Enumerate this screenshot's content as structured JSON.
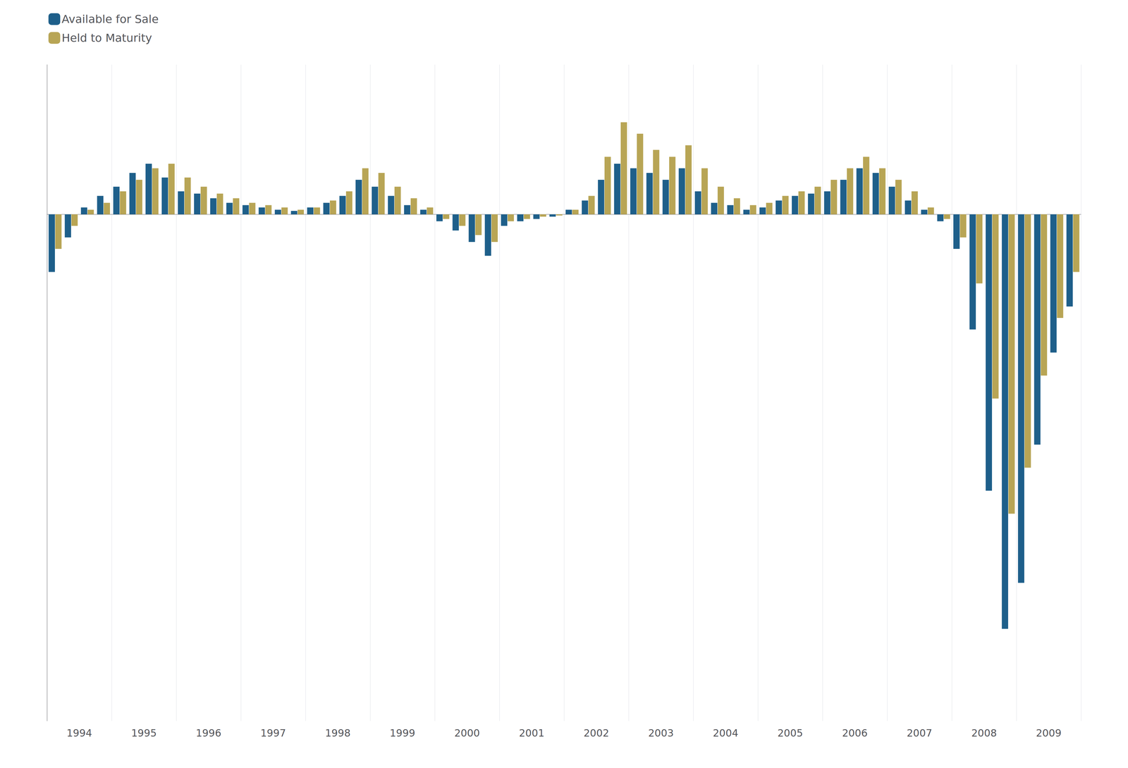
{
  "chart_data": {
    "type": "bar",
    "categories": [
      "1994",
      null,
      null,
      null,
      "1995",
      null,
      null,
      null,
      "1996",
      null,
      null,
      null,
      "1997",
      null,
      null,
      null,
      "1998",
      null,
      null,
      null,
      "1999",
      null,
      null,
      null,
      "2000",
      null,
      null,
      null,
      "2001",
      null,
      null,
      null,
      "2002",
      null,
      null,
      null,
      "2003",
      null,
      null,
      null,
      "2004",
      null,
      null,
      null,
      "2005",
      null,
      null,
      null,
      "2006",
      null,
      null,
      null,
      "2007",
      null,
      null,
      null,
      "2008",
      null,
      null,
      null,
      "2009",
      null,
      null,
      null
    ],
    "series": [
      {
        "name": "Available for Sale",
        "color": "#1e5f8a",
        "values": [
          -2.5,
          -1.0,
          0.3,
          0.8,
          1.2,
          1.8,
          2.2,
          1.6,
          1.0,
          0.9,
          0.7,
          0.5,
          0.4,
          0.3,
          0.2,
          0.15,
          0.3,
          0.5,
          0.8,
          1.5,
          1.2,
          0.8,
          0.4,
          0.2,
          -0.3,
          -0.7,
          -1.2,
          -1.8,
          -0.5,
          -0.3,
          -0.2,
          -0.1,
          0.2,
          0.6,
          1.5,
          2.2,
          2.0,
          1.8,
          1.5,
          2.0,
          1.0,
          0.5,
          0.4,
          0.2,
          0.3,
          0.6,
          0.8,
          0.9,
          1.0,
          1.5,
          2.0,
          1.8,
          1.2,
          0.6,
          0.2,
          -0.3,
          -1.5,
          -5.0,
          -12.0,
          -18.0,
          -16.0,
          -10.0,
          -6.0,
          -4.0
        ]
      },
      {
        "name": "Held to Maturity",
        "color": "#b8a555",
        "values": [
          -1.5,
          -0.5,
          0.2,
          0.5,
          1.0,
          1.5,
          2.0,
          2.2,
          1.6,
          1.2,
          0.9,
          0.7,
          0.5,
          0.4,
          0.3,
          0.2,
          0.3,
          0.6,
          1.0,
          2.0,
          1.8,
          1.2,
          0.7,
          0.3,
          -0.2,
          -0.5,
          -0.9,
          -1.2,
          -0.3,
          -0.2,
          -0.1,
          -0.05,
          0.2,
          0.8,
          2.5,
          4.0,
          3.5,
          2.8,
          2.5,
          3.0,
          2.0,
          1.2,
          0.7,
          0.4,
          0.5,
          0.8,
          1.0,
          1.2,
          1.5,
          2.0,
          2.5,
          2.0,
          1.5,
          1.0,
          0.3,
          -0.2,
          -1.0,
          -3.0,
          -8.0,
          -13.0,
          -11.0,
          -7.0,
          -4.5,
          -2.5
        ]
      }
    ],
    "ylim": [
      -22,
      6.5
    ],
    "grid": false,
    "legend": "upper left",
    "tick_labels": "x"
  }
}
